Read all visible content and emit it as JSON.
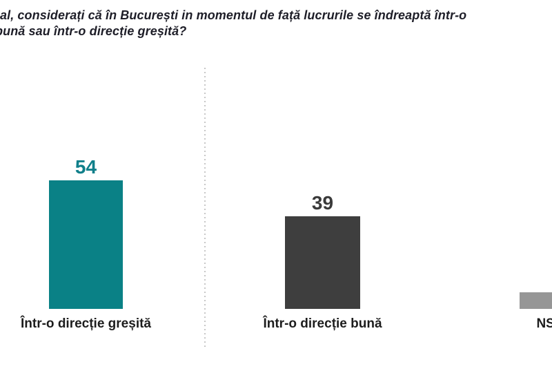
{
  "title": {
    "line1": "al, considerați că în București in momentul de față lucrurile se îndreaptă într-o",
    "line2": "bună sau într-o direcție greșită?"
  },
  "chart_data": {
    "type": "bar",
    "title_lines": [
      "al, considerați că în București in momentul de față lucrurile se îndreaptă într-o",
      "bună sau într-o direcție greșită?"
    ],
    "categories": [
      "Într-o direcție greșită",
      "Într-o direcție bună",
      "NS/NR"
    ],
    "values": [
      54,
      39,
      7
    ],
    "value_labels": [
      "54",
      "39",
      ""
    ],
    "value_labels_visible": [
      true,
      true,
      false
    ],
    "bar_colors": [
      "#0A8186",
      "#3E3E3E",
      "#969696"
    ],
    "value_label_colors": [
      "#0F7F8A",
      "#3A3A3A",
      "#3A3A3A"
    ],
    "xlabel": "",
    "ylabel": "",
    "ylim": [
      0,
      60
    ],
    "grid": false,
    "legend": "none",
    "divider_after_category_index": 0,
    "third_value_estimated_from_bar_height": true
  },
  "colors": {
    "accent_teal": "#0A8186",
    "dark_gray": "#3E3E3E",
    "light_gray": "#969696",
    "divider": "#C7C7C7",
    "title_text": "#1E1E28",
    "label_text": "#1D1D1D"
  }
}
